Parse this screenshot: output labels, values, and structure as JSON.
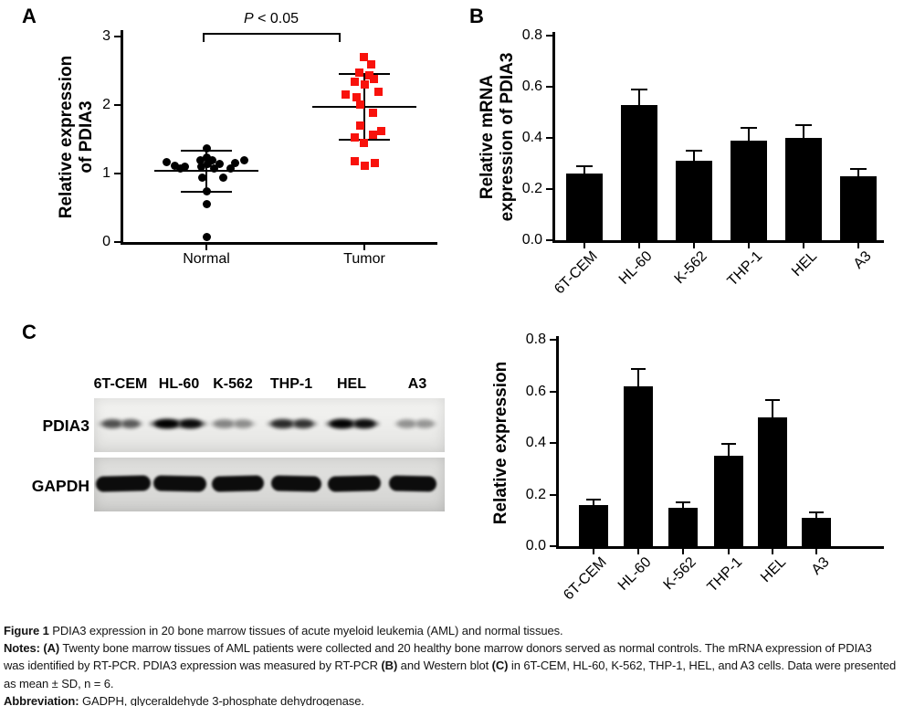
{
  "panels": {
    "a_letter": "A",
    "b_letter": "B",
    "c_letter": "C"
  },
  "chart_data": [
    {
      "id": "panel_a",
      "type": "scatter",
      "ylabel_lines": [
        "Relative expression",
        "of PDIA3"
      ],
      "categories": [
        "Normal",
        "Tumor"
      ],
      "ylim": [
        0,
        3
      ],
      "ytick_values": [
        0,
        1,
        2,
        3
      ],
      "ytick_labels": [
        "0",
        "1",
        "2",
        "3"
      ],
      "significance": {
        "prefix_italic": "P",
        "rest": " < 0.05",
        "compares": [
          "Normal",
          "Tumor"
        ]
      },
      "series": [
        {
          "name": "Normal",
          "marker": "circle",
          "color": "#000000",
          "mean": 1.04,
          "sd_upper": 1.34,
          "sd_lower": 0.74,
          "points": [
            [
              -44,
              1.17
            ],
            [
              -35,
              1.12
            ],
            [
              -29,
              1.08
            ],
            [
              -24,
              1.1
            ],
            [
              -7,
              1.19
            ],
            [
              -6,
              1.1
            ],
            [
              0,
              1.37
            ],
            [
              0,
              1.24
            ],
            [
              1,
              1.14
            ],
            [
              -5,
              0.94
            ],
            [
              6,
              1.19
            ],
            [
              8,
              1.07
            ],
            [
              14,
              1.14
            ],
            [
              18,
              0.94
            ],
            [
              26,
              1.07
            ],
            [
              31,
              1.16
            ],
            [
              41,
              1.19
            ],
            [
              0,
              0.74
            ],
            [
              0,
              0.55
            ],
            [
              0,
              0.07
            ]
          ]
        },
        {
          "name": "Tumor",
          "marker": "square",
          "color": "#f8120c",
          "mean": 1.97,
          "sd_upper": 2.45,
          "sd_lower": 1.49,
          "points": [
            [
              -1,
              2.7
            ],
            [
              7,
              2.6
            ],
            [
              -6,
              2.48
            ],
            [
              5,
              2.43
            ],
            [
              10,
              2.38
            ],
            [
              -11,
              2.34
            ],
            [
              0,
              2.3
            ],
            [
              15,
              2.19
            ],
            [
              -21,
              2.15
            ],
            [
              -9,
              2.11
            ],
            [
              -5,
              2.01
            ],
            [
              9,
              1.89
            ],
            [
              -5,
              1.7
            ],
            [
              18,
              1.62
            ],
            [
              9,
              1.57
            ],
            [
              -11,
              1.53
            ],
            [
              -1,
              1.45
            ],
            [
              -11,
              1.18
            ],
            [
              11,
              1.15
            ],
            [
              0,
              1.11
            ]
          ]
        }
      ]
    },
    {
      "id": "panel_b",
      "type": "bar",
      "ylabel_lines": [
        "Relative mRNA",
        "expression of PDIA3"
      ],
      "categories": [
        "6T-CEM",
        "HL-60",
        "K-562",
        "THP-1",
        "HEL",
        "A3"
      ],
      "values": [
        0.26,
        0.53,
        0.31,
        0.39,
        0.4,
        0.25
      ],
      "errors": [
        0.03,
        0.06,
        0.04,
        0.05,
        0.05,
        0.03
      ],
      "ylim": [
        0,
        0.8
      ],
      "ytick_values": [
        0,
        0.2,
        0.4,
        0.6,
        0.8
      ],
      "ytick_labels": [
        "0.0",
        "0.2",
        "0.4",
        "0.6",
        "0.8"
      ],
      "bar_color": "#000000"
    },
    {
      "id": "panel_c_bar",
      "type": "bar",
      "ylabel_lines": [
        "Relative expression"
      ],
      "categories": [
        "6T-CEM",
        "HL-60",
        "K-562",
        "THP-1",
        "HEL",
        "A3"
      ],
      "values": [
        0.16,
        0.62,
        0.15,
        0.35,
        0.5,
        0.11
      ],
      "errors": [
        0.02,
        0.065,
        0.02,
        0.045,
        0.065,
        0.02
      ],
      "ylim": [
        0,
        0.8
      ],
      "ytick_values": [
        0,
        0.2,
        0.4,
        0.6,
        0.8
      ],
      "ytick_labels": [
        "0.0",
        "0.2",
        "0.4",
        "0.6",
        "0.8"
      ],
      "bar_color": "#000000"
    }
  ],
  "western_blot": {
    "lane_labels": [
      "6T-CEM",
      "HL-60",
      "K-562",
      "THP-1",
      "HEL",
      "A3"
    ],
    "rows": [
      {
        "label": "PDIA3",
        "band_intensities": [
          0.5,
          0.95,
          0.3,
          0.68,
          0.93,
          0.26
        ]
      },
      {
        "label": "GAPDH",
        "band_intensities": [
          0.97,
          0.97,
          0.97,
          0.97,
          0.97,
          0.97
        ]
      }
    ]
  },
  "caption": {
    "lines": [
      [
        [
          "Figure 1 ",
          1
        ],
        [
          "PDIA3 expression in 20 bone marrow tissues of acute myeloid leukemia (AML) and normal tissues.",
          0
        ]
      ],
      [
        [
          "Notes: ",
          1
        ],
        [
          "(A)",
          1
        ],
        [
          " Twenty bone marrow tissues of AML patients were collected and 20 healthy bone marrow donors served as normal controls. The mRNA expression of PDIA3",
          0
        ]
      ],
      [
        [
          "was identified by RT-PCR. PDIA3 expression was measured by RT-PCR ",
          0
        ],
        [
          "(B)",
          1
        ],
        [
          " and Western blot ",
          0
        ],
        [
          "(C)",
          1
        ],
        [
          " in 6T-CEM, HL-60, K-562, THP-1, HEL, and A3 cells. Data were presented",
          0
        ]
      ],
      [
        [
          "as mean ± SD, n = 6.",
          0
        ]
      ],
      [
        [
          "Abbreviation: ",
          1
        ],
        [
          "GADPH, glyceraldehyde 3-phosphate dehydrogenase.",
          0
        ]
      ]
    ]
  }
}
